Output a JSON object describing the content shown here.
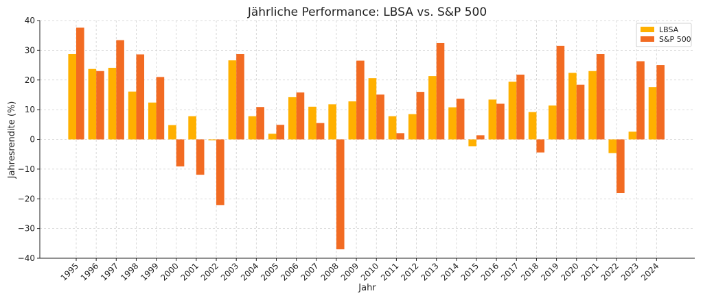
{
  "chart_data": {
    "type": "bar",
    "title": "Jährliche Performance: LBSA vs. S&P 500",
    "xlabel": "Jahr",
    "ylabel": "Jahresrendite (%)",
    "ylim": [
      -40,
      40
    ],
    "yticks": [
      -40,
      -30,
      -20,
      -10,
      0,
      10,
      20,
      30,
      40
    ],
    "ytick_labels": [
      "−40",
      "−30",
      "−20",
      "−10",
      "0",
      "10",
      "20",
      "30",
      "40"
    ],
    "grid": true,
    "legend_position": "top-right",
    "categories": [
      "1995",
      "1996",
      "1997",
      "1998",
      "1999",
      "2000",
      "2001",
      "2002",
      "2003",
      "2004",
      "2005",
      "2006",
      "2007",
      "2008",
      "2009",
      "2010",
      "2011",
      "2012",
      "2013",
      "2014",
      "2015",
      "2016",
      "2017",
      "2018",
      "2019",
      "2020",
      "2021",
      "2022",
      "2023",
      "2024"
    ],
    "series": [
      {
        "name": "LBSA",
        "color": "#FFB000",
        "values": [
          28.7,
          23.7,
          24.1,
          16.1,
          12.4,
          4.8,
          7.8,
          -0.3,
          26.6,
          7.8,
          1.9,
          14.2,
          11.0,
          11.8,
          12.8,
          20.6,
          7.8,
          8.5,
          21.3,
          10.8,
          -2.3,
          13.4,
          19.4,
          9.2,
          11.4,
          22.4,
          23.0,
          -4.6,
          2.6,
          17.6
        ]
      },
      {
        "name": "S&P 500",
        "color": "#F26B22",
        "values": [
          37.6,
          23.0,
          33.4,
          28.6,
          21.0,
          -9.1,
          -11.9,
          -22.1,
          28.7,
          10.9,
          4.9,
          15.8,
          5.5,
          -37.0,
          26.5,
          15.1,
          2.1,
          16.0,
          32.4,
          13.7,
          1.4,
          12.0,
          21.8,
          -4.4,
          31.5,
          18.4,
          28.7,
          -18.1,
          26.3,
          25.0
        ]
      }
    ]
  }
}
